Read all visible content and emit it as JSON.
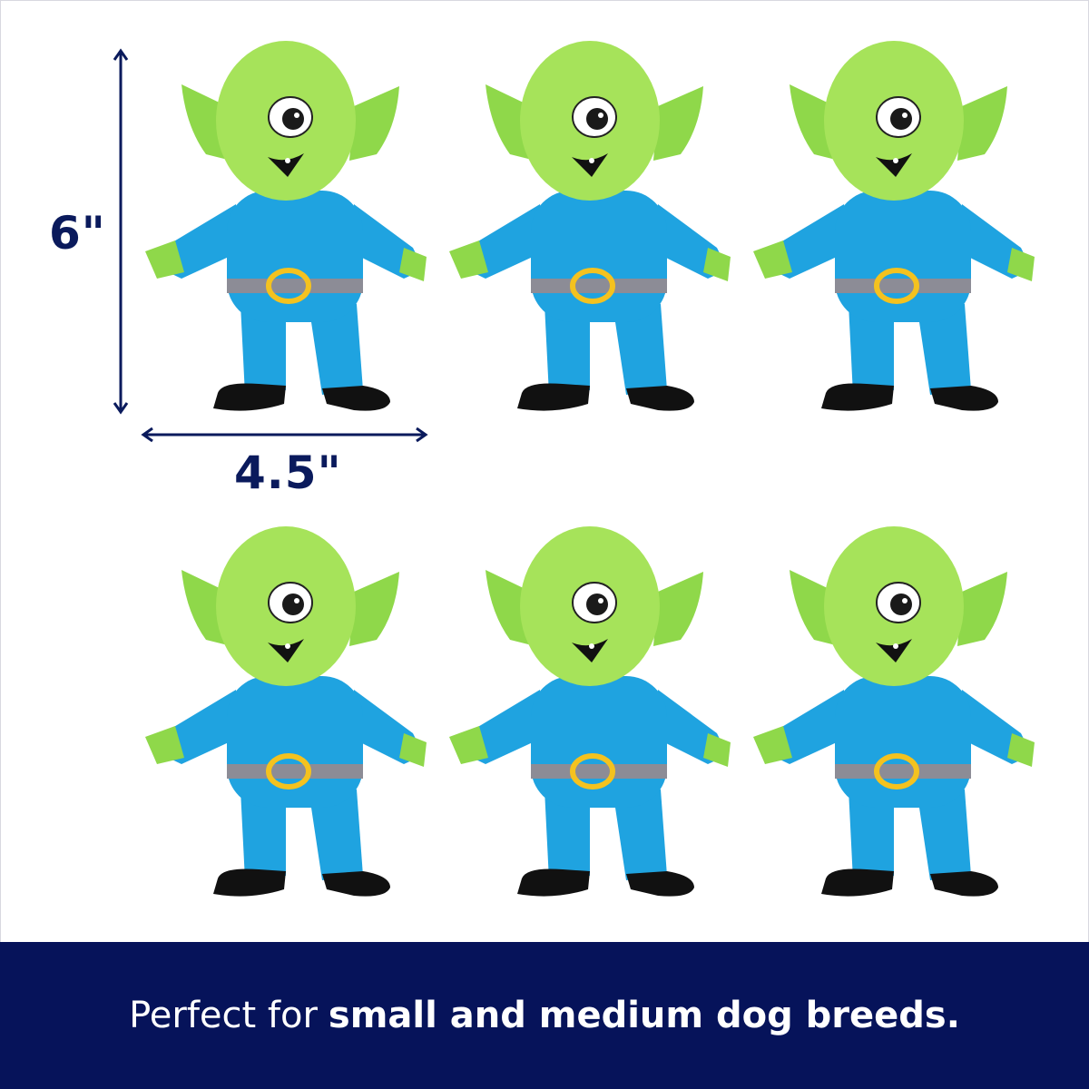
{
  "dimensions": {
    "height_label": "6\"",
    "width_label": "4.5\""
  },
  "product": {
    "count_shown": 6,
    "name_icon": "green-one-eyed-alien-plush-toy"
  },
  "banner": {
    "text_regular": "Perfect for",
    "text_bold": "small and medium dog breeds."
  },
  "colors": {
    "banner_bg": "#06135a",
    "dimension_text": "#0a1a5c",
    "toy_head": "#a6e35a",
    "toy_body": "#1fa3e0",
    "belt": "#8c8c96",
    "buckle": "#f4c21f"
  }
}
